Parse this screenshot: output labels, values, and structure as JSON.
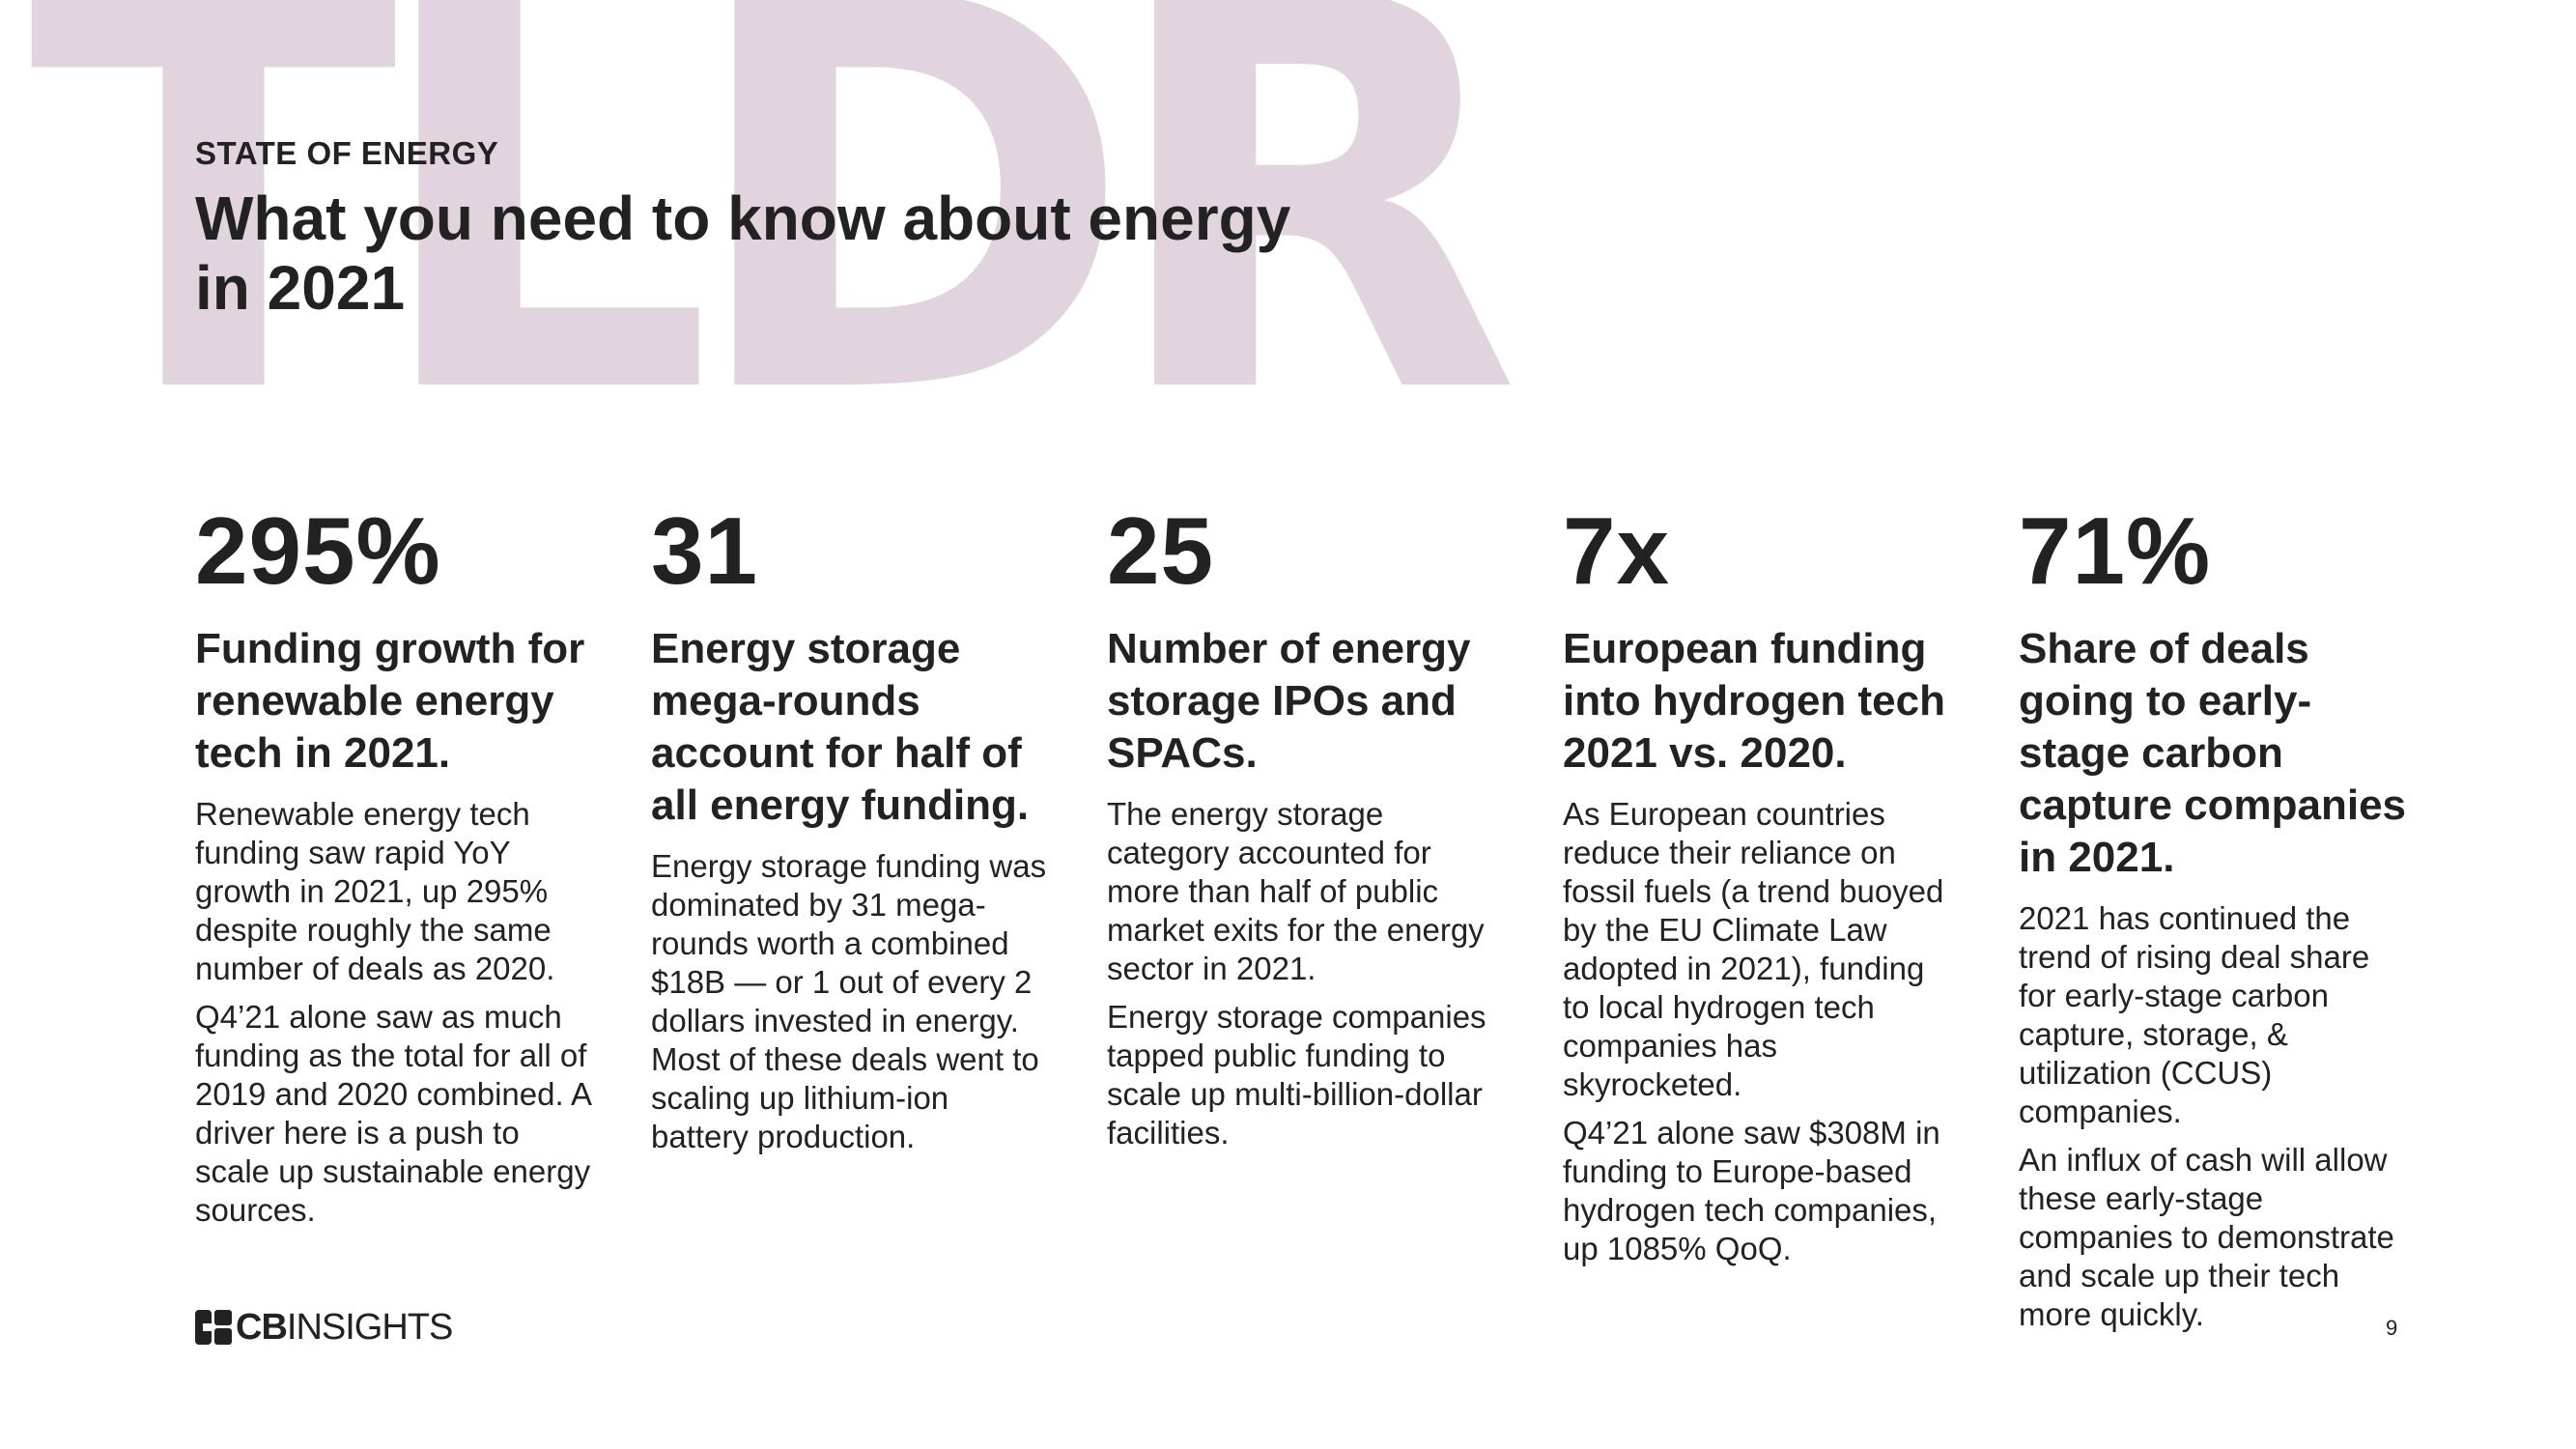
{
  "watermark": "TLDR",
  "header": {
    "eyebrow": "STATE OF ENERGY",
    "title": "What you need to know about energy in 2021"
  },
  "stats": [
    {
      "value": "295%",
      "title": "Funding growth for renewable energy tech in 2021.",
      "paragraphs": [
        "Renewable energy tech funding saw rapid YoY growth in 2021, up 295% despite roughly the same number of deals as 2020.",
        "Q4’21 alone saw as much funding as the total for all of 2019 and 2020 combined. A driver here is a push to scale up sustainable energy sources."
      ]
    },
    {
      "value": "31",
      "title": "Energy storage mega-rounds account for half of all energy funding.",
      "paragraphs": [
        "Energy storage funding was dominated by 31 mega-rounds worth a combined $18B — or 1 out of every 2 dollars invested in energy. Most of these deals went to scaling up lithium-ion battery production."
      ]
    },
    {
      "value": "25",
      "title": "Number of energy storage IPOs and SPACs.",
      "paragraphs": [
        "The energy storage category accounted for more than half of public market exits for the energy sector in 2021.",
        "Energy storage companies tapped public funding to scale up multi-billion-dollar facilities."
      ]
    },
    {
      "value": "7x",
      "title": "European funding into hydrogen tech 2021 vs. 2020.",
      "paragraphs": [
        "As European countries reduce their reliance on fossil fuels (a trend buoyed by the EU Climate Law adopted in 2021), funding to local hydrogen tech companies has skyrocketed.",
        "Q4’21 alone saw $308M in funding to Europe-based hydrogen tech companies, up 1085% QoQ."
      ]
    },
    {
      "value": "71%",
      "title": "Share of deals going to early-stage carbon capture companies in 2021.",
      "paragraphs": [
        "2021 has continued the trend of rising deal share for early-stage carbon capture, storage, & utilization (CCUS) companies.",
        "An influx of cash will allow these early-stage companies to demonstrate and scale up their tech more quickly."
      ]
    }
  ],
  "footer": {
    "logo_bold": "CB",
    "logo_light": "INSIGHTS",
    "page_number": "9"
  }
}
